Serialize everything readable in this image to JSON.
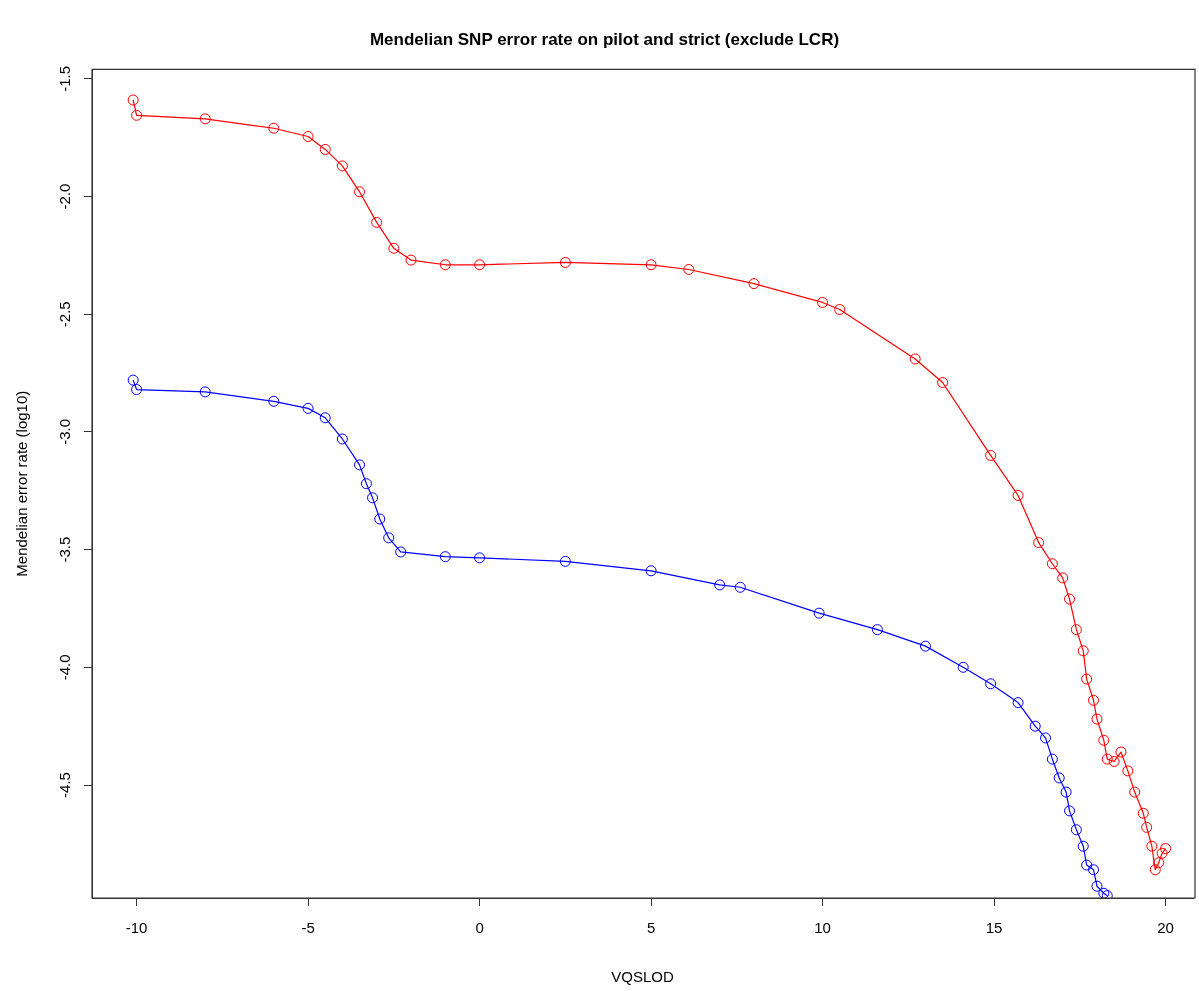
{
  "chart_data": {
    "type": "line",
    "title": "Mendelian SNP error rate on pilot and strict (exclude LCR)",
    "xlabel": "VQSLOD",
    "ylabel": "Mendelian error rate (log10)",
    "xlim": [
      -11.3,
      20.8
    ],
    "xticks": [
      -10,
      -5,
      0,
      5,
      10,
      15,
      20
    ],
    "ylim": [
      -4.98,
      -1.46
    ],
    "yticks": [
      {
        "value": -1.5,
        "label": "-1.5"
      },
      {
        "value": -2,
        "label": "-2.0"
      },
      {
        "value": -2.5,
        "label": "-2.5"
      },
      {
        "value": -3,
        "label": "-3.0"
      },
      {
        "value": -3.5,
        "label": "-3.5"
      },
      {
        "value": -4,
        "label": "-4.0"
      },
      {
        "value": -4.5,
        "label": "-4.5"
      }
    ],
    "grid": false,
    "legend": false,
    "marker": "circle",
    "line_style": "solid",
    "series": [
      {
        "color": "#ff0000",
        "x": [
          -10.1,
          -10,
          -8,
          -6,
          -5,
          -4.5,
          -4,
          -3.5,
          -3,
          -2.5,
          -2,
          -1,
          0,
          2.5,
          5,
          6.1,
          8,
          10,
          10.5,
          12.7,
          13.5,
          14.9,
          15.7,
          16.3,
          16.7,
          17,
          17.2,
          17.4,
          17.6,
          17.7,
          17.9,
          18,
          18.2,
          18.3,
          18.5,
          18.7,
          18.9,
          19.1,
          19.35,
          19.45,
          19.6,
          19.7,
          19.8,
          19.9,
          20
        ],
        "values": [
          -1.59,
          -1.655,
          -1.67,
          -1.71,
          -1.745,
          -1.8,
          -1.87,
          -1.98,
          -2.11,
          -2.22,
          -2.27,
          -2.29,
          -2.29,
          -2.28,
          -2.29,
          -2.31,
          -2.37,
          -2.45,
          -2.48,
          -2.69,
          -2.79,
          -3.1,
          -3.27,
          -3.47,
          -3.56,
          -3.62,
          -3.71,
          -3.84,
          -3.93,
          -4.05,
          -4.14,
          -4.22,
          -4.31,
          -4.39,
          -4.4,
          -4.36,
          -4.44,
          -4.53,
          -4.62,
          -4.68,
          -4.76,
          -4.86,
          -4.83,
          -4.79,
          -4.77
        ]
      },
      {
        "color": "#0000ff",
        "x": [
          -10.1,
          -10,
          -8,
          -6,
          -5,
          -4.5,
          -4,
          -3.5,
          -3.3,
          -3.12,
          -2.91,
          -2.65,
          -2.3,
          -1,
          0,
          2.5,
          5,
          7,
          7.6,
          9.9,
          11.6,
          13,
          14.1,
          14.9,
          15.7,
          16.2,
          16.5,
          16.7,
          16.9,
          17.1,
          17.2,
          17.4,
          17.6,
          17.7,
          17.9,
          18,
          18.2,
          18.3
        ],
        "values": [
          -2.78,
          -2.82,
          -2.83,
          -2.87,
          -2.9,
          -2.94,
          -3.03,
          -3.14,
          -3.22,
          -3.28,
          -3.37,
          -3.45,
          -3.51,
          -3.53,
          -3.535,
          -3.55,
          -3.59,
          -3.65,
          -3.66,
          -3.77,
          -3.84,
          -3.91,
          -4,
          -4.07,
          -4.15,
          -4.25,
          -4.3,
          -4.39,
          -4.47,
          -4.53,
          -4.61,
          -4.69,
          -4.76,
          -4.84,
          -4.86,
          -4.93,
          -4.96,
          -4.97
        ]
      }
    ]
  }
}
